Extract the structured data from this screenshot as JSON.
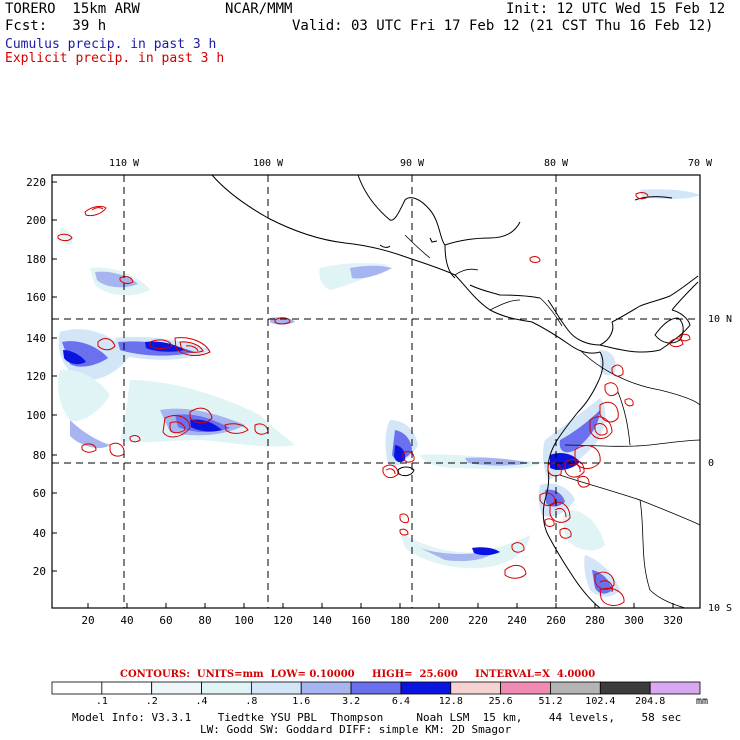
{
  "header": {
    "model": "TORERO  15km ARW",
    "center": "NCAR/MMM",
    "init": "Init: 12 UTC Wed 15 Feb 12",
    "fcst": "Fcst:   39 h",
    "valid": "Valid: 03 UTC Fri 17 Feb 12 (21 CST Thu 16 Feb 12)",
    "field1": "Cumulus precip. in past 3 h",
    "field2": "Explicit precip. in past 3 h",
    "field1_color": "#1a1aa6",
    "field2_color": "#d40000"
  },
  "map": {
    "lon_labels": [
      "110 W",
      "100 W",
      "90 W",
      "80 W",
      "70 W"
    ],
    "lat_labels": [
      "10 N",
      "0",
      "10 S"
    ],
    "y_ticks": [
      "220",
      "200",
      "180",
      "160",
      "140",
      "120",
      "100",
      "80",
      "60",
      "40",
      "20"
    ],
    "x_ticks": [
      "20",
      "40",
      "60",
      "80",
      "100",
      "120",
      "140",
      "160",
      "180",
      "200",
      "220",
      "240",
      "260",
      "280",
      "300",
      "320"
    ]
  },
  "contour_info": "CONTOURS:  UNITS=mm  LOW= 0.10000     HIGH=  25.600     INTERVAL=X  4.0000",
  "colorbar": {
    "labels": [
      ".1",
      ".2",
      ".4",
      ".8",
      "1.6",
      "3.2",
      "6.4",
      "12.8",
      "25.6",
      "51.2",
      "102.4",
      "204.8"
    ],
    "units": "mm",
    "colors": [
      "#ffffff",
      "#ffffff",
      "#eef6fb",
      "#e0f4f6",
      "#d2e6f8",
      "#a6b4f0",
      "#6a70ee",
      "#0a14e0",
      "#f6d2d2",
      "#f08cb4",
      "#b4b4b4",
      "#3c3c3c",
      "#d8a8f0"
    ]
  },
  "footer": {
    "line1": "Model Info: V3.3.1    Tiedtke YSU PBL  Thompson     Noah LSM  15 km,    44 levels,    58 sec",
    "line2": "LW: Godd SW: Goddard DIFF: simple KM: 2D Smagor"
  }
}
